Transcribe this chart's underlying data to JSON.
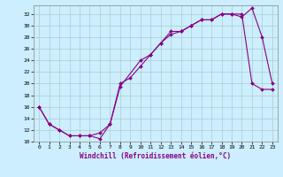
{
  "xlabel": "Windchill (Refroidissement éolien,°C)",
  "background_color": "#cceeff",
  "grid_color": "#aacccc",
  "line_color": "#880088",
  "xlim": [
    -0.5,
    23.5
  ],
  "ylim": [
    10,
    33.5
  ],
  "xticks": [
    0,
    1,
    2,
    3,
    4,
    5,
    6,
    7,
    8,
    9,
    10,
    11,
    12,
    13,
    14,
    15,
    16,
    17,
    18,
    19,
    20,
    21,
    22,
    23
  ],
  "yticks": [
    10,
    12,
    14,
    16,
    18,
    20,
    22,
    24,
    26,
    28,
    30,
    32
  ],
  "line1_x": [
    0,
    1,
    2,
    3,
    4,
    5,
    6,
    7,
    8,
    10,
    11,
    12,
    13,
    14,
    15,
    16,
    17,
    18,
    19,
    20,
    21,
    22,
    23
  ],
  "line1_y": [
    16,
    13,
    12,
    11,
    11,
    11,
    10.5,
    13,
    19.5,
    24,
    25,
    27,
    28.5,
    29,
    30,
    31,
    31,
    32,
    32,
    31.5,
    33,
    28,
    20
  ],
  "line2_x": [
    0,
    1,
    2,
    3,
    4,
    5,
    6,
    7,
    8,
    9,
    10,
    11,
    12,
    13,
    14,
    15,
    16,
    17,
    18,
    19,
    20,
    21,
    22,
    23
  ],
  "line2_y": [
    16,
    13,
    12,
    11,
    11,
    11,
    11.5,
    13,
    20,
    21,
    23,
    25,
    27,
    29,
    29,
    30,
    31,
    31,
    32,
    32,
    32,
    20,
    19,
    19
  ]
}
